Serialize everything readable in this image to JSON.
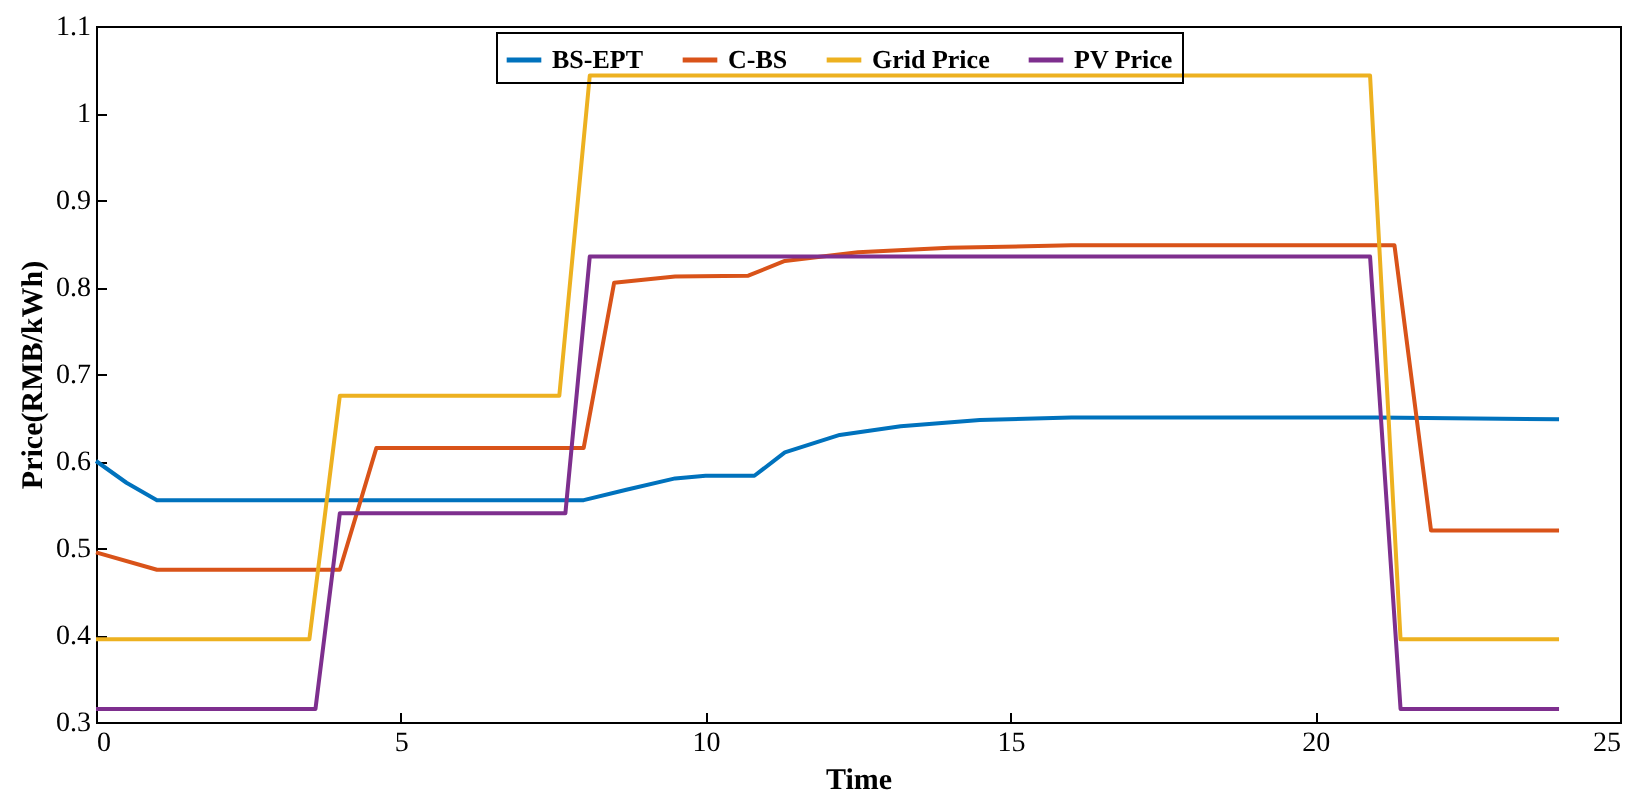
{
  "chart_data": {
    "type": "line",
    "xlabel": "Time",
    "ylabel": "Price(RMB/kWh)",
    "xlim": [
      0,
      25
    ],
    "xticks": [
      0,
      5,
      10,
      15,
      20,
      25
    ],
    "ylim": [
      0.3,
      1.1
    ],
    "yticks": [
      0.3,
      0.4,
      0.5,
      0.6,
      0.7,
      0.8,
      0.9,
      1,
      1.1
    ],
    "grid": false,
    "legend": "top",
    "marker": "none",
    "line_style": "solid",
    "series": [
      {
        "name": "BS-EPT",
        "color": "#0072bd",
        "x": [
          0,
          0.5,
          1,
          8,
          8.7,
          9.5,
          10,
          10.8,
          11.3,
          12.2,
          13.2,
          14.5,
          16,
          21,
          24
        ],
        "values": [
          0.6,
          0.575,
          0.555,
          0.555,
          0.567,
          0.58,
          0.583,
          0.583,
          0.61,
          0.63,
          0.64,
          0.647,
          0.65,
          0.65,
          0.648
        ]
      },
      {
        "name": "C-BS",
        "color": "#d95319",
        "x": [
          0,
          1,
          4,
          4.6,
          8,
          8.5,
          9.5,
          10.7,
          11.3,
          12.5,
          14,
          16,
          21.3,
          21.9,
          24
        ],
        "values": [
          0.495,
          0.475,
          0.475,
          0.615,
          0.615,
          0.805,
          0.812,
          0.813,
          0.83,
          0.84,
          0.845,
          0.848,
          0.848,
          0.52,
          0.52
        ]
      },
      {
        "name": "Grid Price",
        "color": "#edb120",
        "x": [
          0,
          3.5,
          4,
          7.6,
          8.1,
          20.9,
          21.4,
          24
        ],
        "values": [
          0.395,
          0.395,
          0.675,
          0.675,
          1.043,
          1.043,
          0.395,
          0.395
        ]
      },
      {
        "name": "PV Price",
        "color": "#7e2f8e",
        "x": [
          0,
          3.6,
          4,
          7.7,
          8.1,
          20.9,
          21.4,
          24
        ],
        "values": [
          0.315,
          0.315,
          0.54,
          0.54,
          0.835,
          0.835,
          0.315,
          0.315
        ]
      }
    ]
  }
}
